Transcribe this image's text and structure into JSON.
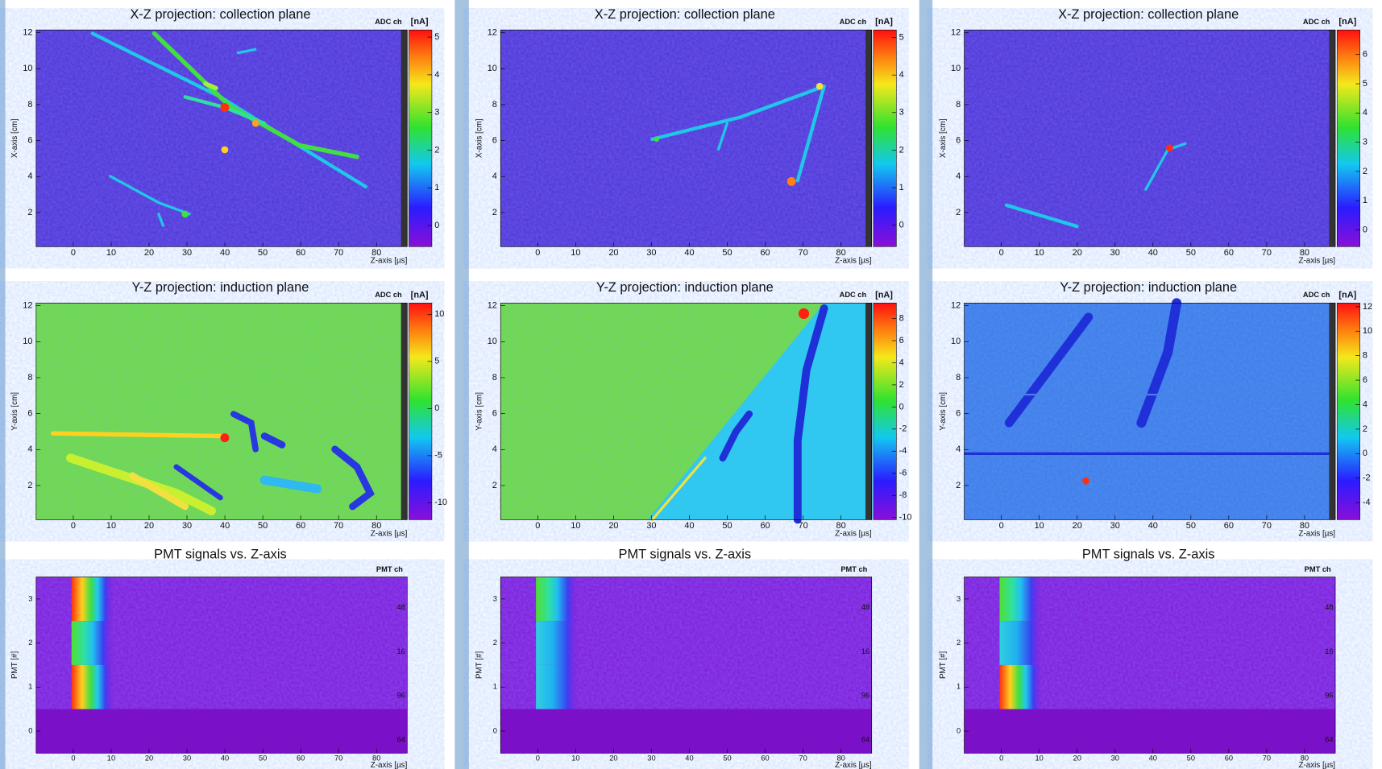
{
  "columns": [
    {
      "collection": {
        "title": "X-Z projection: collection plane",
        "ylabel": "X-axis [cm]",
        "xlabel": "Z-axis [µs]",
        "xticks": [
          0,
          10,
          20,
          30,
          40,
          50,
          60,
          70,
          80
        ],
        "yticks": [
          2,
          4,
          6,
          8,
          10,
          12
        ],
        "xlim": [
          -9.8,
          88.1
        ],
        "ylim": [
          0.1,
          12.15
        ],
        "colorbar_label": "ADC ch",
        "colorbar_unit": "[nA]",
        "zlim": [
          -0.56,
          5.19
        ],
        "zticks": [
          0,
          1,
          2,
          3,
          4,
          5
        ]
      },
      "induction": {
        "title": "Y-Z projection: induction plane",
        "ylabel": "Y-axis [cm]",
        "xlabel": "Z-axis [µs]",
        "xticks": [
          0,
          10,
          20,
          30,
          40,
          50,
          60,
          70,
          80
        ],
        "yticks": [
          2,
          4,
          6,
          8,
          10,
          12
        ],
        "xlim": [
          -9.8,
          88.1
        ],
        "ylim": [
          0.1,
          12.15
        ],
        "colorbar_label": "ADC ch",
        "colorbar_unit": "[nA]",
        "zlim": [
          -11.8,
          11.2
        ],
        "zticks": [
          -10,
          -5,
          0,
          5,
          10
        ]
      },
      "pmt": {
        "title": "PMT signals vs. Z-axis",
        "ylabel": "PMT [#]",
        "xlabel": "Z-axis [µs]",
        "xticks": [
          0,
          10,
          20,
          30,
          40,
          50,
          60,
          70,
          80
        ],
        "yticks": [
          0,
          1,
          2,
          3
        ],
        "xlim": [
          -9.8,
          88.1
        ],
        "ylim": [
          -0.5,
          3.5
        ],
        "right_label": "PMT ch",
        "right_ticks": [
          "64",
          "96",
          "16",
          "48"
        ]
      }
    },
    {
      "collection": {
        "title": "X-Z projection: collection plane",
        "ylabel": "X-axis [cm]",
        "xlabel": "Z-axis [µs]",
        "xticks": [
          0,
          10,
          20,
          30,
          40,
          50,
          60,
          70,
          80
        ],
        "yticks": [
          2,
          4,
          6,
          8,
          10,
          12
        ],
        "xlim": [
          -9.8,
          88.1
        ],
        "ylim": [
          0.1,
          12.15
        ],
        "colorbar_label": "ADC ch",
        "colorbar_unit": "[nA]",
        "zlim": [
          -0.57,
          5.2
        ],
        "zticks": [
          0,
          1,
          2,
          3,
          4,
          5
        ]
      },
      "induction": {
        "title": "Y-Z projection: induction plane",
        "ylabel": "Y-axis [cm]",
        "xlabel": "Z-axis [µs]",
        "xticks": [
          0,
          10,
          20,
          30,
          40,
          50,
          60,
          70,
          80
        ],
        "yticks": [
          2,
          4,
          6,
          8,
          10,
          12
        ],
        "xlim": [
          -9.8,
          88.1
        ],
        "ylim": [
          0.1,
          12.15
        ],
        "colorbar_label": "ADC ch",
        "colorbar_unit": "[nA]",
        "zlim": [
          -10.2,
          9.4
        ],
        "zticks": [
          -10,
          -8,
          -6,
          -4,
          -2,
          0,
          2,
          4,
          6,
          8
        ]
      },
      "pmt": {
        "title": "PMT signals vs. Z-axis",
        "ylabel": "PMT [#]",
        "xlabel": "Z-axis [µs]",
        "xticks": [
          0,
          10,
          20,
          30,
          40,
          50,
          60,
          70,
          80
        ],
        "yticks": [
          0,
          1,
          2,
          3
        ],
        "xlim": [
          -9.8,
          88.1
        ],
        "ylim": [
          -0.5,
          3.5
        ],
        "right_label": "PMT ch",
        "right_ticks": [
          "64",
          "96",
          "16",
          "48"
        ]
      }
    },
    {
      "collection": {
        "title": "X-Z projection: collection plane",
        "ylabel": "X-axis [cm]",
        "xlabel": "Z-axis [µs]",
        "xticks": [
          0,
          10,
          20,
          30,
          40,
          50,
          60,
          70,
          80
        ],
        "yticks": [
          2,
          4,
          6,
          8,
          10,
          12
        ],
        "xlim": [
          -9.8,
          88.1
        ],
        "ylim": [
          0.1,
          12.15
        ],
        "colorbar_label": "ADC ch",
        "colorbar_unit": "[nA]",
        "zlim": [
          -0.57,
          6.84
        ],
        "zticks": [
          0,
          1,
          2,
          3,
          4,
          5,
          6
        ]
      },
      "induction": {
        "title": "Y-Z projection: induction plane",
        "ylabel": "Y-axis [cm]",
        "xlabel": "Z-axis [µs]",
        "xticks": [
          0,
          10,
          20,
          30,
          40,
          50,
          60,
          70,
          80
        ],
        "yticks": [
          2,
          4,
          6,
          8,
          10,
          12
        ],
        "xlim": [
          -9.8,
          88.1
        ],
        "ylim": [
          0.1,
          12.15
        ],
        "colorbar_label": "ADC ch",
        "colorbar_unit": "[nA]",
        "zlim": [
          -5.4,
          12.3
        ],
        "zticks": [
          -4,
          -2,
          0,
          2,
          4,
          6,
          8,
          10,
          12
        ]
      },
      "pmt": {
        "title": "PMT signals vs. Z-axis",
        "ylabel": "PMT [#]",
        "xlabel": "Z-axis [µs]",
        "xticks": [
          0,
          10,
          20,
          30,
          40,
          50,
          60,
          70,
          80
        ],
        "yticks": [
          0,
          1,
          2,
          3
        ],
        "xlim": [
          -9.8,
          88.1
        ],
        "ylim": [
          -0.5,
          3.5
        ],
        "right_label": "PMT ch",
        "right_ticks": [
          "64",
          "96",
          "16",
          "48"
        ]
      }
    }
  ]
}
